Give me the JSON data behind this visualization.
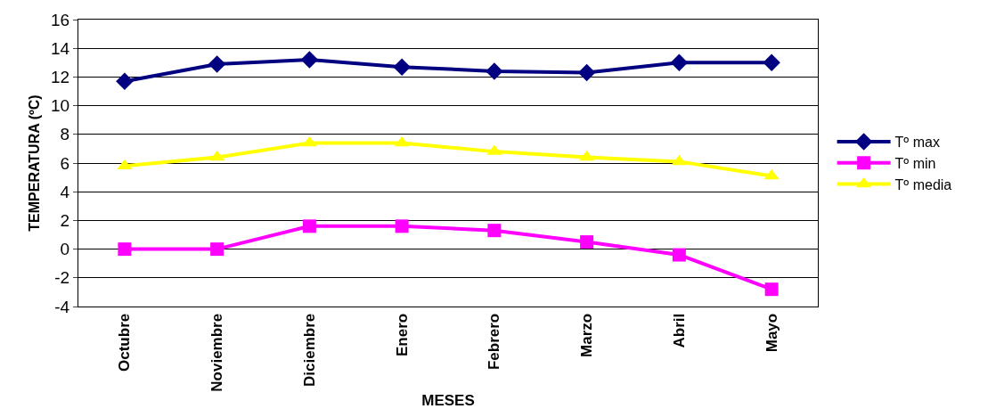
{
  "chart_data": {
    "type": "line",
    "xlabel": "MESES",
    "ylabel": "TEMPERATURA (ºC)",
    "categories": [
      "Octubre",
      "Noviembre",
      "Diciembre",
      "Enero",
      "Febrero",
      "Marzo",
      "Abril",
      "Mayo"
    ],
    "series": [
      {
        "name": "Tº max",
        "color": "#000080",
        "marker": "diamond",
        "values": [
          11.7,
          12.9,
          13.2,
          12.7,
          12.4,
          12.3,
          13.0,
          13.0
        ]
      },
      {
        "name": "Tº min",
        "color": "#ff00ff",
        "marker": "square",
        "values": [
          0.0,
          0.0,
          1.6,
          1.6,
          1.3,
          0.5,
          -0.4,
          -2.8
        ]
      },
      {
        "name": "Tº media",
        "color": "#ffff00",
        "marker": "triangle",
        "values": [
          5.8,
          6.4,
          7.4,
          7.4,
          6.8,
          6.4,
          6.1,
          5.1
        ]
      }
    ],
    "ylim": [
      -4,
      16
    ],
    "yticks": [
      -4,
      -2,
      0,
      2,
      4,
      6,
      8,
      10,
      12,
      14,
      16
    ],
    "grid": "y",
    "legend": "right",
    "line_style": "solid"
  }
}
